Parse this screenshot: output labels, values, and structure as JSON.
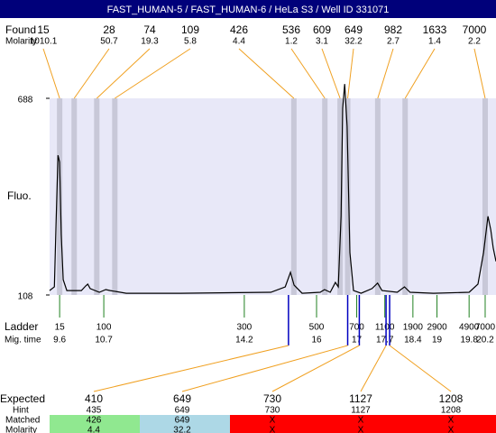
{
  "header": {
    "title": "FAST_HUMAN-5 / FAST_HUMAN-6 / HeLa S3 / Well ID 331071"
  },
  "found": {
    "label": "Found",
    "molarity_label": "Molarity",
    "sizes": [
      15,
      28,
      74,
      109,
      426,
      536,
      609,
      649,
      982,
      1633,
      7000
    ],
    "molarity": [
      1010.1,
      50.7,
      19.3,
      5.8,
      4.4,
      1.2,
      3.1,
      32.2,
      2.7,
      1.4,
      2.2
    ]
  },
  "chart_data": {
    "type": "line",
    "y_label": "Fluo.",
    "ylim": [
      108,
      688
    ],
    "yticks": [
      108,
      688
    ],
    "xlim": [
      9.35,
      20.47
    ],
    "background": "#e8e8f8",
    "band_color": "#c8c8d8",
    "link_color": "#f0a020",
    "series": [
      {
        "color": "#000000",
        "x": [
          9.35,
          9.47,
          9.51,
          9.56,
          9.6,
          9.64,
          9.69,
          9.78,
          10.14,
          10.25,
          10.3,
          10.36,
          10.59,
          10.75,
          10.86,
          11.26,
          12.61,
          14.86,
          15.22,
          15.35,
          15.44,
          15.64,
          16.09,
          16.2,
          16.34,
          16.47,
          16.54,
          16.61,
          16.65,
          16.7,
          16.76,
          16.83,
          16.92,
          17.11,
          17.38,
          17.52,
          17.63,
          18.01,
          18.19,
          18.33,
          18.91,
          19.8,
          20.02,
          20.16,
          20.27,
          20.34,
          20.4,
          20.47
        ],
        "values": [
          121,
          132,
          313,
          520,
          500,
          287,
          153,
          121,
          121,
          135,
          140,
          127,
          116,
          124,
          121,
          113,
          113,
          116,
          132,
          175,
          137,
          113,
          116,
          124,
          116,
          145,
          132,
          340,
          659,
          730,
          605,
          233,
          121,
          113,
          127,
          143,
          121,
          116,
          132,
          116,
          113,
          116,
          140,
          233,
          340,
          300,
          247,
          207
        ]
      }
    ]
  },
  "ladder": {
    "label": "Ladder",
    "time_label": "Mig. time",
    "color": "#208020",
    "sizes": [
      15,
      100,
      300,
      500,
      700,
      1100,
      1900,
      2900,
      4900,
      7000
    ],
    "times": [
      9.6,
      10.7,
      14.2,
      16,
      17,
      17.7,
      18.4,
      19,
      19.8,
      20.2
    ]
  },
  "expected": {
    "label": "Expected",
    "hint_label": "Hint",
    "matched_label": "Matched",
    "molarity_label": "Molarity",
    "line_color": "#0000c0",
    "sizes": [
      410,
      649,
      730,
      1127,
      1208
    ],
    "hints": [
      435,
      649,
      730,
      1127,
      1208
    ],
    "matched": [
      426,
      649,
      "X",
      "X",
      "X"
    ],
    "molarity": [
      4.4,
      32.2,
      "X",
      "X",
      "X"
    ],
    "colors": [
      "#90e890",
      "#add8e6",
      "#ff0000",
      "#ff0000",
      "#ff0000"
    ]
  }
}
